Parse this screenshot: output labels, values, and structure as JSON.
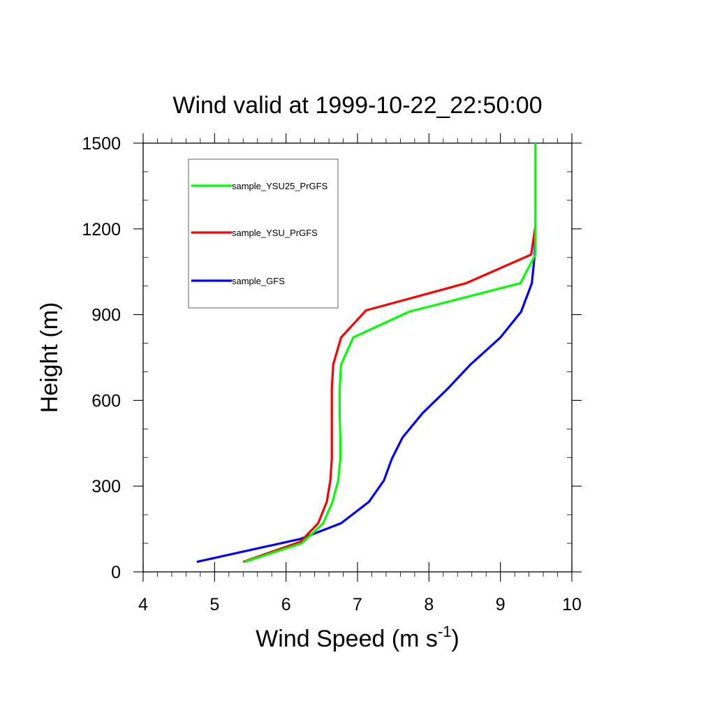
{
  "chart_data": {
    "type": "line",
    "title": "Wind valid at 1999-10-22_22:50:00",
    "xlabel": "Wind Speed (m s",
    "xlabel_sup": "-1",
    "xlabel_end": ")",
    "ylabel": "Height (m)",
    "xlim": [
      4,
      10
    ],
    "ylim": [
      0,
      1500
    ],
    "xticks": [
      4,
      5,
      6,
      7,
      8,
      9,
      10
    ],
    "yticks": [
      0,
      300,
      600,
      900,
      1200,
      1500
    ],
    "legend_position": "top-left",
    "series": [
      {
        "name": "sample_YSU25_PrGFS",
        "color": "#00ff00",
        "x": [
          5.42,
          6.22,
          6.52,
          6.65,
          6.73,
          6.76,
          6.76,
          6.75,
          6.75,
          6.77,
          6.94,
          7.72,
          9.28,
          9.49,
          9.49,
          9.49
        ],
        "y": [
          35,
          100,
          170,
          245,
          320,
          395,
          470,
          550,
          640,
          725,
          820,
          910,
          1010,
          1110,
          1210,
          1500
        ]
      },
      {
        "name": "sample_YSU_PrGFS",
        "color": "#ff0000",
        "x": [
          5.4,
          6.2,
          6.45,
          6.57,
          6.62,
          6.64,
          6.64,
          6.64,
          6.64,
          6.66,
          6.77,
          7.12,
          8.52,
          9.43,
          9.49
        ],
        "y": [
          35,
          105,
          170,
          245,
          320,
          395,
          470,
          550,
          640,
          725,
          820,
          915,
          1010,
          1110,
          1210
        ]
      },
      {
        "name": "sample_GFS",
        "color": "#0000ff",
        "x": [
          4.75,
          6.2,
          6.77,
          7.16,
          7.37,
          7.48,
          7.63,
          7.91,
          8.26,
          8.58,
          9.0,
          9.29,
          9.44,
          9.48,
          9.49
        ],
        "y": [
          35,
          115,
          170,
          245,
          320,
          395,
          470,
          555,
          640,
          725,
          820,
          910,
          1010,
          1110,
          1210
        ]
      }
    ]
  }
}
